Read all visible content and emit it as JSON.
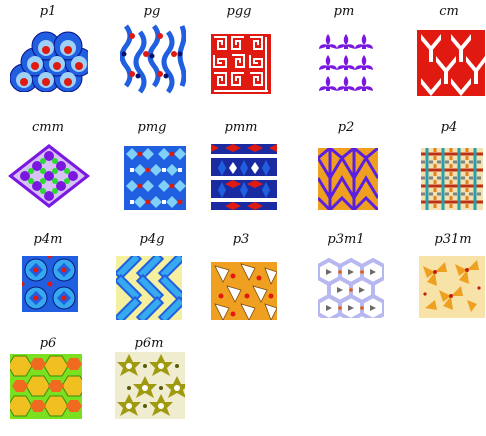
{
  "groups": [
    {
      "name": "p1"
    },
    {
      "name": "pg"
    },
    {
      "name": "pgg"
    },
    {
      "name": "pm"
    },
    {
      "name": "cm"
    },
    {
      "name": "cmm"
    },
    {
      "name": "pmg"
    },
    {
      "name": "pmm"
    },
    {
      "name": "p2"
    },
    {
      "name": "p4"
    },
    {
      "name": "p4m"
    },
    {
      "name": "p4g"
    },
    {
      "name": "p3"
    },
    {
      "name": "p3m1"
    },
    {
      "name": "p31m"
    },
    {
      "name": "p6"
    },
    {
      "name": "p6m"
    }
  ],
  "colors": {
    "blue": "#1f5fe0",
    "navy": "#1a2aa0",
    "red": "#e01a10",
    "lightblue": "#37a9ee",
    "purple": "#7a18e0",
    "green": "#2ed82e",
    "orange": "#f0a020",
    "yellow": "#f5f0a0",
    "olive": "#a09a10",
    "cream": "#f7e3a8",
    "lavender": "#b8b8f0",
    "lime": "#7ae020"
  }
}
